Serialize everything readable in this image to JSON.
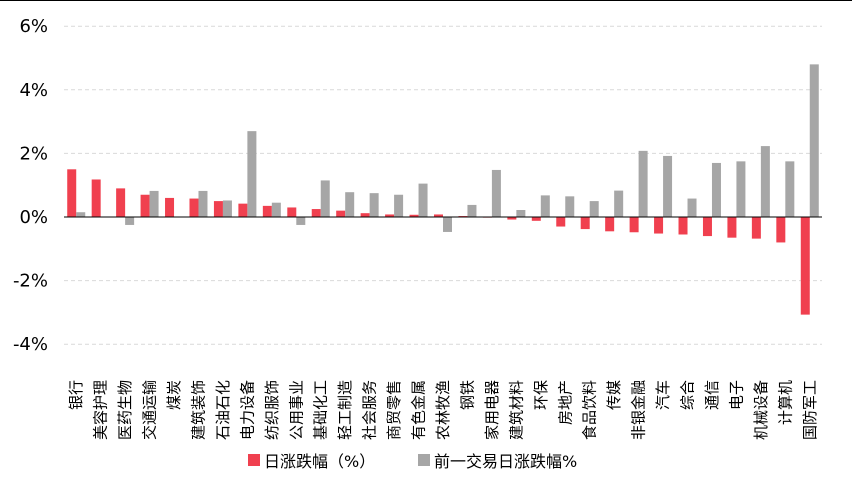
{
  "chart_data": {
    "type": "bar",
    "categories": [
      "银行",
      "美容护理",
      "医药生物",
      "交通运输",
      "煤炭",
      "建筑装饰",
      "石油石化",
      "电力设备",
      "纺织服饰",
      "公用事业",
      "基础化工",
      "轻工制造",
      "社会服务",
      "商贸零售",
      "有色金属",
      "农林牧渔",
      "钢铁",
      "家用电器",
      "建筑材料",
      "环保",
      "房地产",
      "食品饮料",
      "传媒",
      "非银金融",
      "汽车",
      "综合",
      "通信",
      "电子",
      "机械设备",
      "计算机",
      "国防军工"
    ],
    "series": [
      {
        "name": "日涨跌幅（%）",
        "color": "#f0404f",
        "values": [
          1.5,
          1.18,
          0.9,
          0.7,
          0.6,
          0.58,
          0.5,
          0.42,
          0.35,
          0.3,
          0.25,
          0.2,
          0.12,
          0.08,
          0.07,
          0.08,
          0.03,
          -0.02,
          -0.08,
          -0.12,
          -0.3,
          -0.38,
          -0.45,
          -0.48,
          -0.52,
          -0.55,
          -0.6,
          -0.65,
          -0.68,
          -0.8,
          -3.07
        ]
      },
      {
        "name": "前一交易日涨跌幅%",
        "color": "#a6a6a6",
        "values": [
          0.15,
          0.0,
          -0.25,
          0.82,
          0.0,
          0.82,
          0.52,
          2.7,
          0.45,
          -0.25,
          1.15,
          0.78,
          0.75,
          0.7,
          1.05,
          -0.47,
          0.38,
          1.48,
          0.22,
          0.68,
          0.65,
          0.5,
          0.83,
          2.08,
          1.92,
          0.58,
          1.7,
          1.75,
          2.23,
          1.75,
          4.8
        ]
      }
    ],
    "yticks": [
      "6%",
      "4%",
      "2%",
      "0%",
      "-2%",
      "-4%"
    ],
    "ylim": [
      -4,
      6
    ],
    "grid": true,
    "legend_position": "bottom"
  }
}
